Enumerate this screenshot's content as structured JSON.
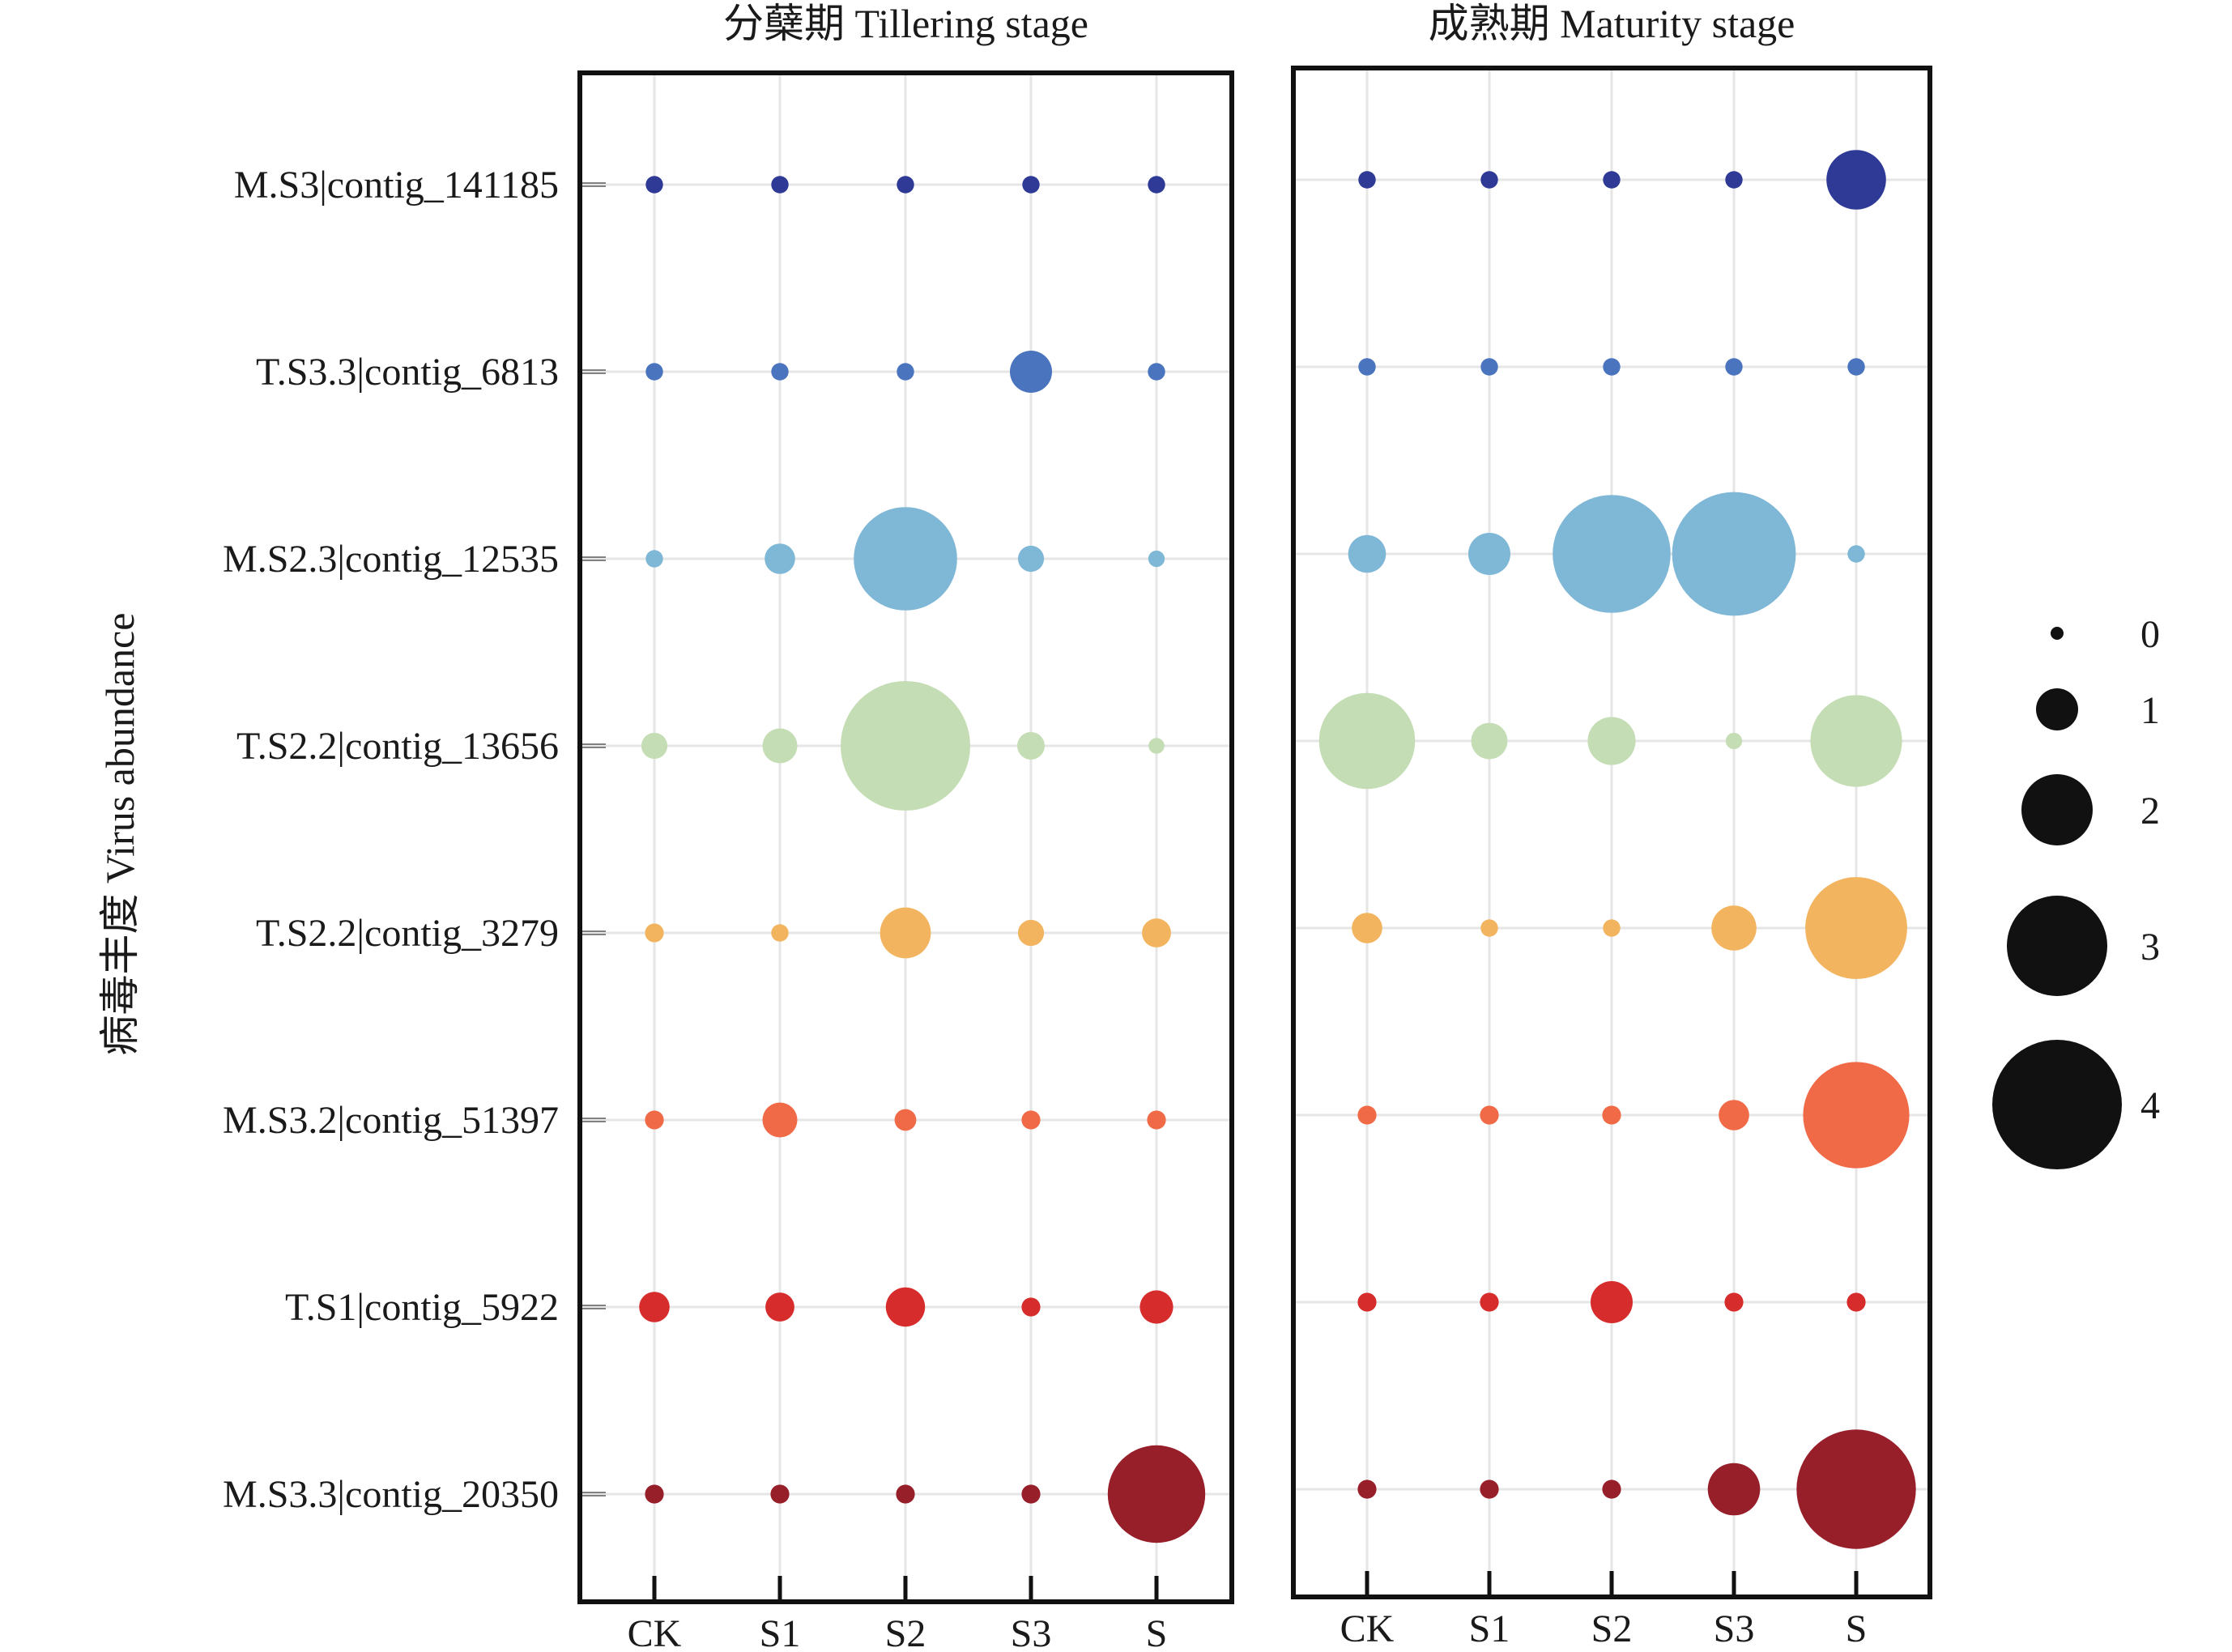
{
  "chart_data": {
    "type": "scatter",
    "ylabel": "病毒丰度 Virus abundance",
    "categories": [
      "CK",
      "S1",
      "S2",
      "S3",
      "S"
    ],
    "rows": [
      "M.S3|contig_141185",
      "T.S3.3|contig_6813",
      "M.S2.3|contig_12535",
      "T.S2.2|contig_13656",
      "T.S2.2|contig_3279",
      "M.S3.2|contig_51397",
      "T.S1|contig_5922",
      "M.S3.3|contig_20350"
    ],
    "row_colors": [
      "#2e3a96",
      "#4a74bd",
      "#7fb7d6",
      "#c5ddb5",
      "#f3b460",
      "#f06a47",
      "#d72c2c",
      "#971f2a"
    ],
    "panels": [
      {
        "title": "分蘖期 Tillering stage",
        "values": [
          [
            0.15,
            0.15,
            0.15,
            0.15,
            0.15
          ],
          [
            0.15,
            0.15,
            0.15,
            1.0,
            0.15
          ],
          [
            0.15,
            0.6,
            3.1,
            0.45,
            0.12
          ],
          [
            0.45,
            0.75,
            4.0,
            0.5,
            0.1
          ],
          [
            0.2,
            0.15,
            1.3,
            0.45,
            0.55
          ],
          [
            0.2,
            0.75,
            0.3,
            0.2,
            0.2
          ],
          [
            0.6,
            0.55,
            0.9,
            0.2,
            0.7
          ],
          [
            0.2,
            0.2,
            0.2,
            0.2,
            2.9
          ]
        ]
      },
      {
        "title": "成熟期 Maturity stage",
        "values": [
          [
            0.15,
            0.15,
            0.15,
            0.15,
            1.6
          ],
          [
            0.15,
            0.15,
            0.15,
            0.15,
            0.15
          ],
          [
            0.85,
            1.0,
            3.6,
            3.8,
            0.15
          ],
          [
            2.85,
            0.8,
            1.2,
            0.12,
            2.7
          ],
          [
            0.6,
            0.15,
            0.15,
            1.1,
            3.05
          ],
          [
            0.2,
            0.2,
            0.2,
            0.6,
            3.2
          ],
          [
            0.2,
            0.2,
            1.0,
            0.2,
            0.2
          ],
          [
            0.2,
            0.2,
            0.2,
            1.35,
            3.65
          ]
        ]
      }
    ],
    "size_legend": {
      "values": [
        0,
        1,
        2,
        3,
        4
      ],
      "labels": [
        "0",
        "1",
        "2",
        "3",
        "4"
      ],
      "color": "#111111"
    },
    "grid": true
  }
}
